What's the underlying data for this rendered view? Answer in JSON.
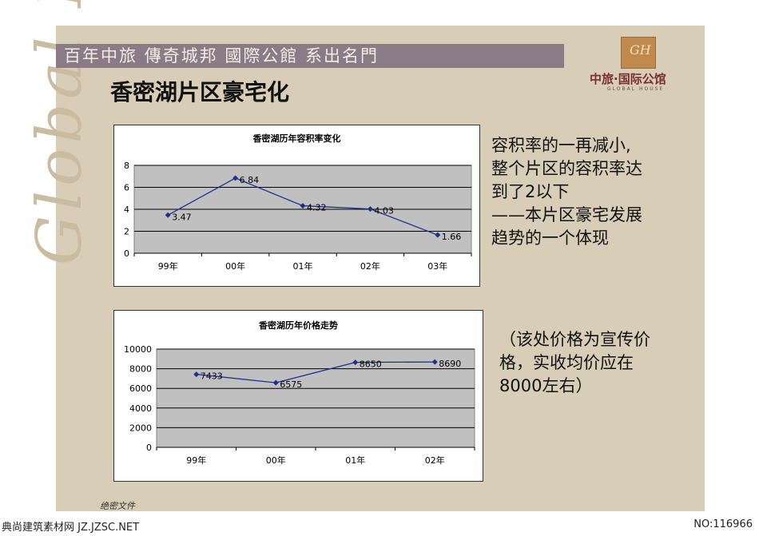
{
  "slide": {
    "banner": "百年中旅  傳奇城邦  國際公館  系出名門",
    "watermark": "Global House",
    "brand": "中旅·国际公馆",
    "brand_sub": "GLOBAL HOUSE",
    "title": "香密湖片区豪宅化",
    "footer_note": "绝密文件",
    "side_text_1": [
      "容积率的一再减小,",
      "整个片区的容积率达",
      "到了2以下",
      "——本片区豪宅发展",
      "趋势的一个体现"
    ],
    "side_text_2": [
      "（该处价格为宣传价",
      "格，实收均价应在",
      "8000左右）"
    ]
  },
  "page_footer": {
    "left": "典尚建筑素材网 JZ.JZSC.NET",
    "right": "NO:116966"
  },
  "colors": {
    "plot_bg": "#c0c0c0",
    "series": "#1f2f8f",
    "slide_bg": "#d8cdb6",
    "banner_bg": "#8a7b86"
  },
  "chart_data": [
    {
      "type": "line",
      "title": "香密湖历年容积率变化",
      "categories": [
        "99年",
        "00年",
        "01年",
        "02年",
        "03年"
      ],
      "values": [
        3.47,
        6.84,
        4.32,
        4.03,
        1.66
      ],
      "value_labels": [
        "3.47",
        "6.84",
        "4.32",
        "4.03",
        "1.66"
      ],
      "ylim": [
        0,
        8
      ],
      "yticks": [
        "0",
        "2",
        "4",
        "6",
        "8"
      ],
      "grid": true
    },
    {
      "type": "line",
      "title": "香密湖历年价格走势",
      "categories": [
        "99年",
        "00年",
        "01年",
        "02年"
      ],
      "values": [
        7433,
        6575,
        8650,
        8690
      ],
      "value_labels": [
        "7433",
        "6575",
        "8650",
        "8690"
      ],
      "ylim": [
        0,
        10000
      ],
      "yticks": [
        "0",
        "2000",
        "4000",
        "6000",
        "8000",
        "10000"
      ],
      "grid": true
    }
  ]
}
